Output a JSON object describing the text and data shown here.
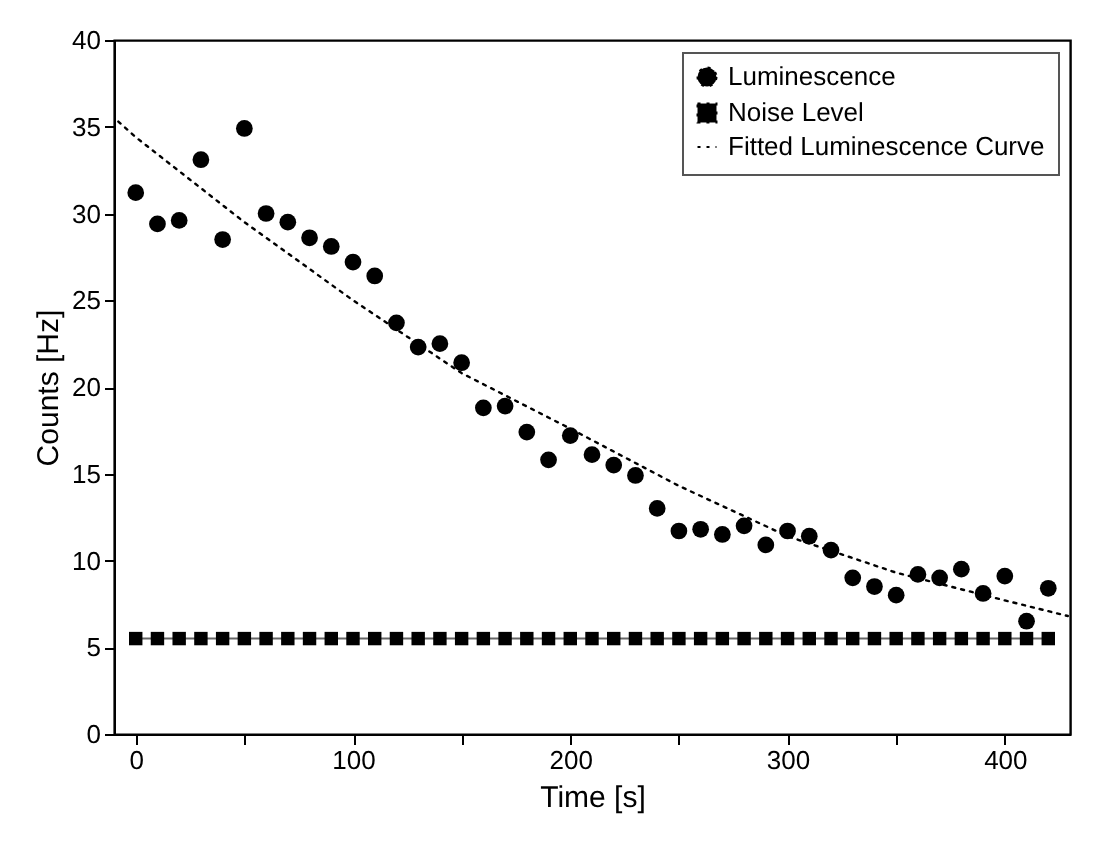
{
  "chart_data": {
    "type": "scatter",
    "xlabel": "Time [s]",
    "ylabel": "Counts [Hz]",
    "xlim": [
      -10,
      430
    ],
    "ylim": [
      0,
      40
    ],
    "xticks": [
      0,
      {
        "value": 50,
        "label": null
      },
      100,
      {
        "value": 150,
        "label": null
      },
      200,
      {
        "value": 250,
        "label": null
      },
      300,
      {
        "value": 350,
        "label": null
      },
      400
    ],
    "yticks": [
      0,
      5,
      10,
      15,
      20,
      25,
      30,
      35,
      40
    ],
    "grid": false,
    "legend": "top right",
    "x": [
      0,
      10,
      20,
      30,
      40,
      50,
      60,
      70,
      80,
      90,
      100,
      110,
      120,
      130,
      140,
      150,
      160,
      170,
      180,
      190,
      200,
      210,
      220,
      230,
      240,
      250,
      260,
      270,
      280,
      290,
      300,
      310,
      320,
      330,
      340,
      350,
      360,
      370,
      380,
      390,
      400,
      410,
      420
    ],
    "series": [
      {
        "name": "Luminescence",
        "marker": "circle",
        "color": "#000000",
        "values": [
          31.2,
          29.4,
          29.6,
          33.1,
          28.5,
          34.9,
          30.0,
          29.5,
          28.6,
          28.1,
          27.2,
          26.4,
          23.7,
          22.3,
          22.5,
          21.4,
          18.8,
          18.9,
          17.4,
          15.8,
          17.2,
          16.1,
          15.5,
          14.9,
          13.0,
          11.7,
          11.8,
          11.5,
          12.0,
          10.9,
          11.7,
          11.4,
          10.6,
          9.0,
          8.5,
          8.0,
          9.2,
          9.0,
          9.5,
          8.1,
          9.1,
          6.5,
          8.4
        ]
      },
      {
        "name": "Noise Level",
        "type": "line",
        "marker": "square",
        "line_style": "solid",
        "color": "#000000",
        "values": [
          5.5,
          5.5,
          5.5,
          5.5,
          5.5,
          5.5,
          5.5,
          5.5,
          5.5,
          5.5,
          5.5,
          5.5,
          5.5,
          5.5,
          5.5,
          5.5,
          5.5,
          5.5,
          5.5,
          5.5,
          5.5,
          5.5,
          5.5,
          5.5,
          5.5,
          5.5,
          5.5,
          5.5,
          5.5,
          5.5,
          5.5,
          5.5,
          5.5,
          5.5,
          5.5,
          5.5,
          5.5,
          5.5,
          5.5,
          5.5,
          5.5,
          5.5,
          5.5
        ]
      },
      {
        "name": "Fitted Luminescence Curve",
        "type": "line",
        "marker": "none",
        "line_style": "dotted",
        "color": "#000000",
        "x": [
          -8,
          0,
          50,
          100,
          150,
          200,
          250,
          300,
          350,
          400,
          429
        ],
        "values": [
          35.3,
          34.4,
          29.5,
          25.0,
          20.8,
          17.6,
          14.3,
          11.4,
          9.3,
          7.7,
          6.8
        ]
      }
    ]
  }
}
